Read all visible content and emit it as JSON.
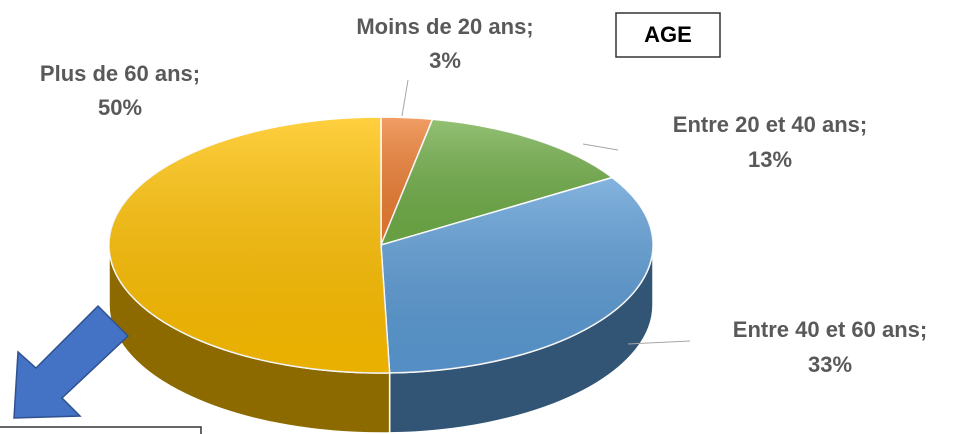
{
  "chart_data": {
    "type": "pie3d",
    "title": "AGE",
    "categories": [
      "Moins de 20 ans;",
      "Entre 20 et 40 ans;",
      "Entre 40 et 60 ans;",
      "Plus de 60 ans;"
    ],
    "values": [
      3,
      13,
      33,
      50
    ],
    "value_labels": [
      "3%",
      "13%",
      "33%",
      "50%"
    ],
    "colors": [
      "#ed7d31",
      "#70ad47",
      "#5b9bd5",
      "#ffc000"
    ]
  }
}
